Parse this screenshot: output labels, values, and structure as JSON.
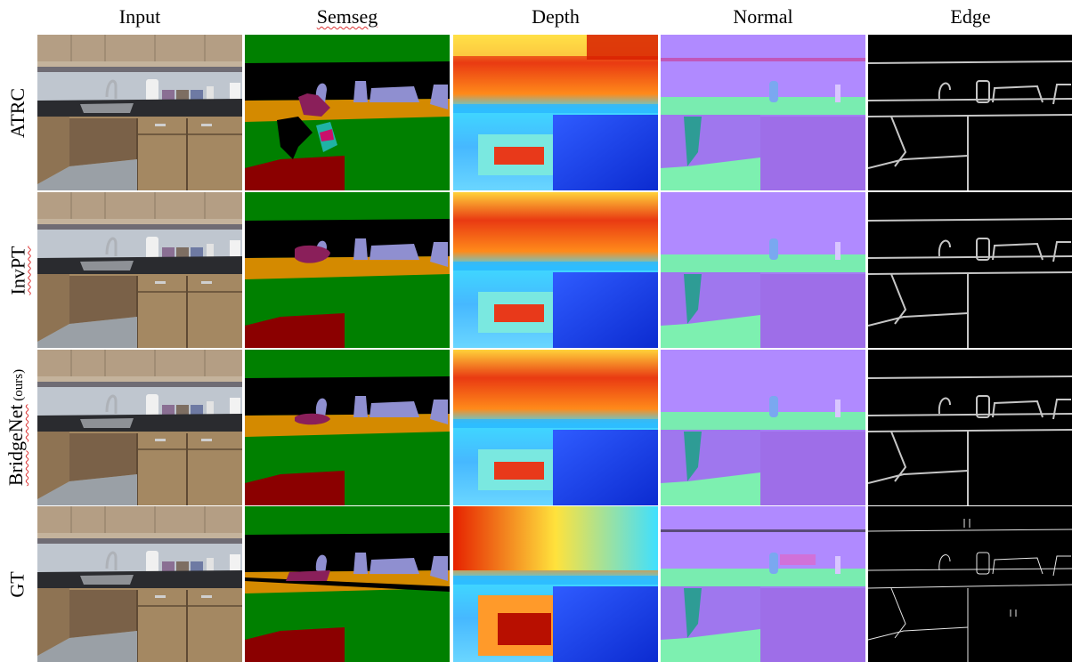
{
  "columns": [
    "Input",
    "Semseg",
    "Depth",
    "Normal",
    "Edge"
  ],
  "rows": [
    {
      "label": "ATRC",
      "suffix": ""
    },
    {
      "label": "InvPT",
      "suffix": ""
    },
    {
      "label": "BridgeNet",
      "suffix": " (ours)"
    },
    {
      "label": "GT",
      "suffix": ""
    }
  ],
  "colors": {
    "semseg_wall": "#008000",
    "semseg_ceiling": "#000000",
    "semseg_counter": "#d48a00",
    "semseg_objects": "#8f8fd0",
    "semseg_floor": "#8b0000",
    "semseg_sink": "#8a1f5a",
    "depth_far": "#d81e00",
    "depth_mid": "#ffe23c",
    "depth_near": "#1c3fe0",
    "normal_base": "#a77ef2",
    "normal_floor": "#7df0b0",
    "normal_face": "#2e9c95",
    "edge_background": "#000000",
    "edge_line": "#e6e6e6"
  }
}
